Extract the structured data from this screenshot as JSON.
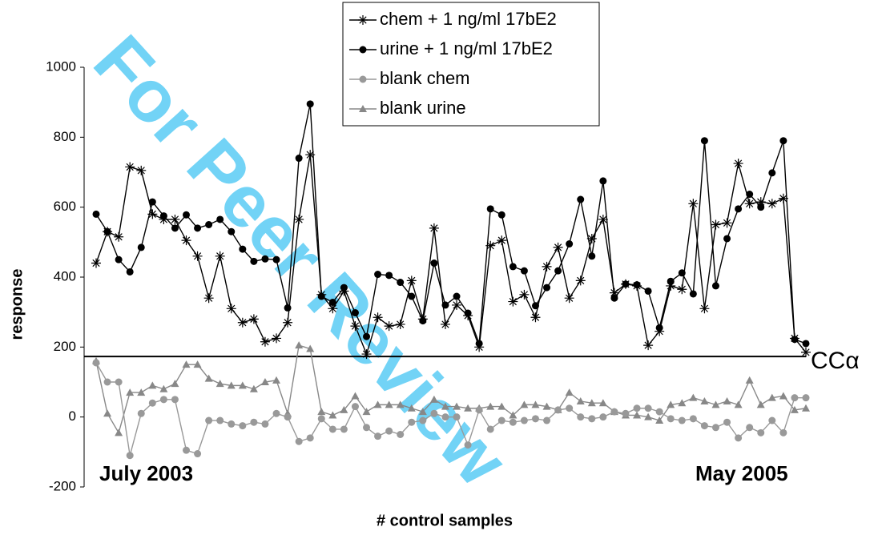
{
  "chart_data": {
    "type": "line",
    "watermark": "For Peer Review",
    "ylabel": "response",
    "xlabel": "# control samples",
    "annotations": [
      "July 2003",
      "May 2005"
    ],
    "threshold": {
      "value": 173,
      "label": "CCα"
    },
    "ylim": [
      -200,
      1000
    ],
    "yticks": [
      -200,
      0,
      200,
      400,
      600,
      800,
      1000
    ],
    "legend": "top",
    "series": [
      {
        "name": "chem + 1 ng/ml 17bE2",
        "color": "#000000",
        "marker": "star",
        "values": [
          440,
          530,
          515,
          715,
          705,
          580,
          565,
          565,
          505,
          460,
          340,
          460,
          310,
          270,
          280,
          215,
          225,
          270,
          565,
          750,
          350,
          310,
          360,
          260,
          180,
          285,
          260,
          265,
          390,
          280,
          540,
          265,
          320,
          290,
          200,
          490,
          505,
          330,
          350,
          285,
          430,
          485,
          340,
          390,
          510,
          565,
          355,
          380,
          375,
          205,
          245,
          375,
          365,
          610,
          310,
          550,
          555,
          725,
          610,
          615,
          610,
          625,
          225,
          185
        ]
      },
      {
        "name": "urine + 1 ng/ml 17bE2",
        "color": "#000000",
        "marker": "circle",
        "values": [
          580,
          530,
          450,
          415,
          485,
          615,
          575,
          540,
          578,
          540,
          550,
          565,
          530,
          480,
          445,
          452,
          450,
          312,
          740,
          895,
          345,
          328,
          370,
          298,
          230,
          408,
          405,
          385,
          345,
          275,
          440,
          320,
          345,
          297,
          210,
          595,
          578,
          430,
          418,
          318,
          370,
          418,
          495,
          622,
          460,
          675,
          340,
          380,
          378,
          360,
          255,
          388,
          412,
          352,
          790,
          375,
          510,
          595,
          637,
          600,
          698,
          790,
          222,
          210
        ]
      },
      {
        "name": "blank chem",
        "color": "#999999",
        "marker": "circle",
        "values": [
          155,
          100,
          100,
          -110,
          10,
          40,
          50,
          50,
          -95,
          -105,
          -10,
          -10,
          -20,
          -25,
          -15,
          -20,
          10,
          0,
          -70,
          -60,
          -5,
          -35,
          -35,
          30,
          -30,
          -55,
          -40,
          -50,
          -15,
          -10,
          10,
          0,
          0,
          -80,
          20,
          -35,
          -10,
          -15,
          -10,
          -5,
          -10,
          20,
          25,
          0,
          -5,
          0,
          15,
          10,
          25,
          25,
          15,
          -5,
          -10,
          -5,
          -25,
          -30,
          -15,
          -60,
          -30,
          -45,
          -10,
          -45,
          55,
          55
        ]
      },
      {
        "name": "blank urine",
        "color": "#888888",
        "marker": "triangle",
        "values": [
          160,
          10,
          -45,
          70,
          70,
          90,
          80,
          95,
          150,
          150,
          110,
          95,
          90,
          90,
          80,
          100,
          105,
          10,
          205,
          195,
          15,
          5,
          20,
          60,
          15,
          35,
          35,
          35,
          25,
          15,
          50,
          30,
          30,
          25,
          25,
          30,
          30,
          5,
          35,
          35,
          30,
          20,
          70,
          45,
          40,
          40,
          15,
          5,
          5,
          0,
          -10,
          35,
          40,
          55,
          45,
          35,
          45,
          35,
          105,
          35,
          55,
          60,
          20,
          25
        ]
      }
    ]
  }
}
